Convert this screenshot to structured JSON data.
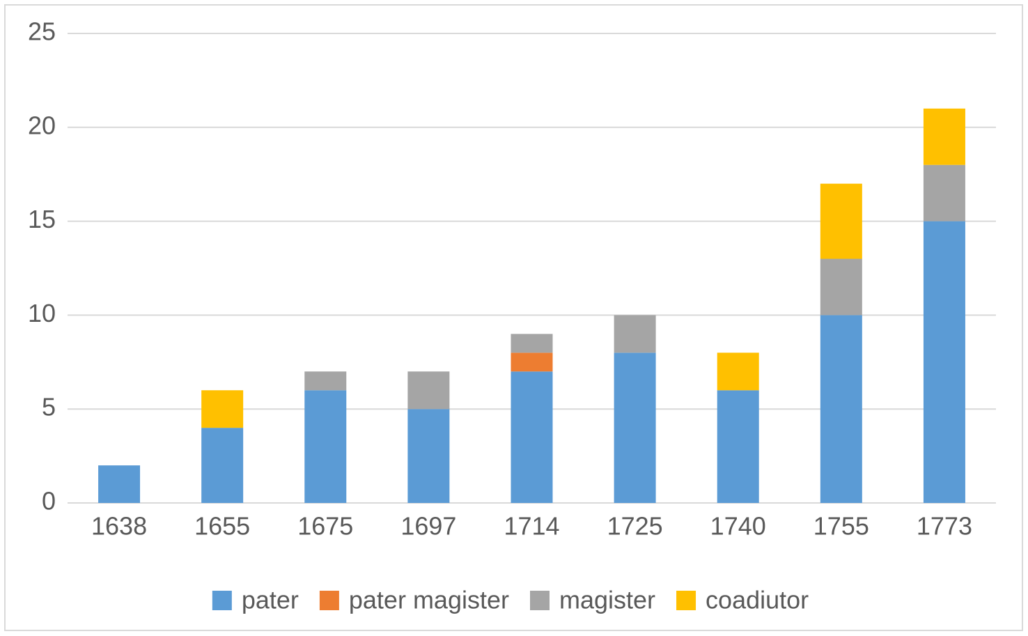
{
  "chart_data": {
    "type": "stacked_bar",
    "categories": [
      "1638",
      "1655",
      "1675",
      "1697",
      "1714",
      "1725",
      "1740",
      "1755",
      "1773"
    ],
    "series": [
      {
        "name": "pater",
        "color": "#5b9bd5",
        "values": [
          2,
          4,
          6,
          5,
          7,
          8,
          6,
          10,
          15
        ]
      },
      {
        "name": "pater magister",
        "color": "#ed7d31",
        "values": [
          0,
          0,
          0,
          0,
          1,
          0,
          0,
          0,
          0
        ]
      },
      {
        "name": "magister",
        "color": "#a5a5a5",
        "values": [
          0,
          0,
          1,
          2,
          1,
          2,
          0,
          3,
          3
        ]
      },
      {
        "name": "coadiutor",
        "color": "#ffc000",
        "values": [
          0,
          2,
          0,
          0,
          0,
          0,
          2,
          4,
          3
        ]
      }
    ],
    "ylim": [
      0,
      25
    ],
    "yticks": [
      0,
      5,
      10,
      15,
      20,
      25
    ],
    "grid": true,
    "legend": "bottom"
  }
}
